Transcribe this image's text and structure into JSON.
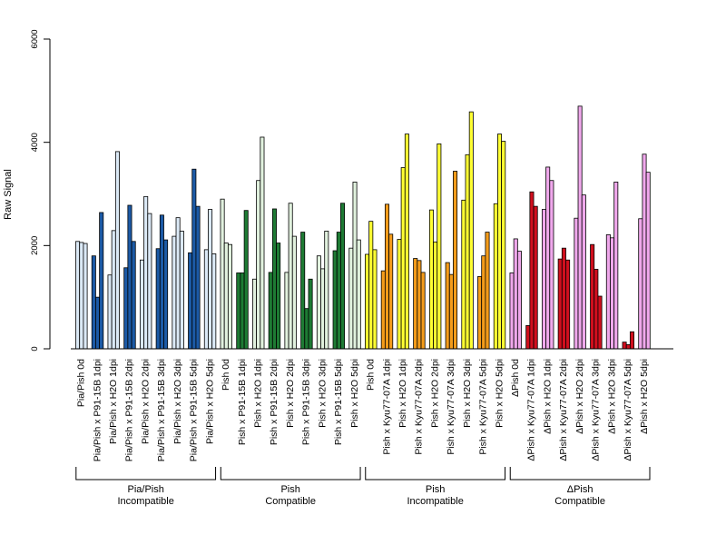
{
  "chart_data": {
    "type": "bar",
    "title": "",
    "xlabel": "",
    "ylabel": "Raw Signal",
    "ylim": [
      0,
      6000
    ],
    "yticks": [
      "0",
      "2000",
      "4000",
      "6000"
    ],
    "grid": false,
    "legend": "none",
    "replicates_per_bar_group": 3,
    "groups": [
      {
        "label": "Pia/Pish 0d",
        "values": [
          2080,
          2060,
          2040
        ],
        "color": "#dbe9f6"
      },
      {
        "label": "Pia/Pish x P91-15B 1dpi",
        "values": [
          1800,
          1000,
          2640
        ],
        "color": "#1c5aa6"
      },
      {
        "label": "Pia/Pish x H2O 1dpi",
        "values": [
          1430,
          2290,
          3820
        ],
        "color": "#dbe9f6"
      },
      {
        "label": "Pia/Pish x P91-15B 2dpi",
        "values": [
          1570,
          2780,
          2080
        ],
        "color": "#1c5aa6"
      },
      {
        "label": "Pia/Pish x H2O 2dpi",
        "values": [
          1720,
          2950,
          2620
        ],
        "color": "#dbe9f6"
      },
      {
        "label": "Pia/Pish x P91-15B 3dpi",
        "values": [
          1940,
          2590,
          2110
        ],
        "color": "#1c5aa6"
      },
      {
        "label": "Pia/Pish x H2O 3dpi",
        "values": [
          2180,
          2540,
          2280
        ],
        "color": "#dbe9f6"
      },
      {
        "label": "Pia/Pish x P91-15B 5dpi",
        "values": [
          1860,
          3480,
          2760
        ],
        "color": "#1c5aa6"
      },
      {
        "label": "Pia/Pish x H2O 5dpi",
        "values": [
          1920,
          2700,
          1840
        ],
        "color": "#dbe9f6"
      },
      {
        "label": "Pish 0d",
        "values": [
          2900,
          2050,
          2020
        ],
        "color": "#e1f1de"
      },
      {
        "label": "Pish x P91-15B 1dpi",
        "values": [
          1470,
          1470,
          2680
        ],
        "color": "#1e7b34"
      },
      {
        "label": "Pish x H2O 1dpi",
        "values": [
          1350,
          3260,
          4100
        ],
        "color": "#e1f1de"
      },
      {
        "label": "Pish x P91-15B 2dpi",
        "values": [
          1480,
          2710,
          2050
        ],
        "color": "#1e7b34"
      },
      {
        "label": "Pish x H2O 2dpi",
        "values": [
          1480,
          2820,
          2180
        ],
        "color": "#e1f1de"
      },
      {
        "label": "Pish x P91-15B 3dpi",
        "values": [
          2260,
          780,
          1350
        ],
        "color": "#1e7b34"
      },
      {
        "label": "Pish x H2O 3dpi",
        "values": [
          1800,
          1550,
          2280
        ],
        "color": "#e1f1de"
      },
      {
        "label": "Pish x P91-15B 5dpi",
        "values": [
          1900,
          2260,
          2820
        ],
        "color": "#1e7b34"
      },
      {
        "label": "Pish x H2O 5dpi",
        "values": [
          1950,
          3230,
          2110
        ],
        "color": "#e1f1de"
      },
      {
        "label": "Pish 0d",
        "values": [
          1830,
          2470,
          1920
        ],
        "color": "#ffff33"
      },
      {
        "label": "Pish x Kyu77-07A 1dpi",
        "values": [
          1510,
          2800,
          2220
        ],
        "color": "#f49c1a"
      },
      {
        "label": "Pish x H2O 1dpi",
        "values": [
          2120,
          3510,
          4160
        ],
        "color": "#ffff33"
      },
      {
        "label": "Pish x Kyu77-07A 2dpi",
        "values": [
          1750,
          1710,
          1480
        ],
        "color": "#f49c1a"
      },
      {
        "label": "Pish x H2O 2dpi",
        "values": [
          2690,
          2070,
          3970
        ],
        "color": "#ffff33"
      },
      {
        "label": "Pish x Kyu77-07A 3dpi",
        "values": [
          1670,
          1440,
          3440
        ],
        "color": "#f49c1a"
      },
      {
        "label": "Pish x H2O 3dpi",
        "values": [
          2880,
          3760,
          4590
        ],
        "color": "#ffff33"
      },
      {
        "label": "Pish x Kyu77-07A 5dpi",
        "values": [
          1400,
          1800,
          2260
        ],
        "color": "#f49c1a"
      },
      {
        "label": "Pish x H2O 5dpi",
        "values": [
          2810,
          4160,
          4020
        ],
        "color": "#ffff33"
      },
      {
        "label": "ΔPish 0d",
        "values": [
          1470,
          2130,
          1890
        ],
        "color": "#f0a8ec"
      },
      {
        "label": "ΔPish x Kyu77-07A 1dpi",
        "values": [
          450,
          3040,
          2760
        ],
        "color": "#d00f1e"
      },
      {
        "label": "ΔPish x H2O 1dpi",
        "values": [
          2700,
          3520,
          3260
        ],
        "color": "#f0a8ec"
      },
      {
        "label": "ΔPish x Kyu77-07A 2dpi",
        "values": [
          1740,
          1950,
          1720
        ],
        "color": "#d00f1e"
      },
      {
        "label": "ΔPish x H2O 2dpi",
        "values": [
          2530,
          4700,
          2980
        ],
        "color": "#f0a8ec"
      },
      {
        "label": "ΔPish x Kyu77-07A 3dpi",
        "values": [
          2020,
          1540,
          1020
        ],
        "color": "#d00f1e"
      },
      {
        "label": "ΔPish x H2O 3dpi",
        "values": [
          2210,
          2150,
          3230
        ],
        "color": "#f0a8ec"
      },
      {
        "label": "ΔPish x Kyu77-07A 5dpi",
        "values": [
          130,
          80,
          330
        ],
        "color": "#d00f1e"
      },
      {
        "label": "ΔPish x H2O 5dpi",
        "values": [
          2520,
          3770,
          3420
        ],
        "color": "#f0a8ec"
      }
    ],
    "brackets": [
      {
        "line1": "Pia/Pish",
        "line2": "Incompatible",
        "from_group": 0,
        "to_group": 8
      },
      {
        "line1": "Pish",
        "line2": "Compatible",
        "from_group": 9,
        "to_group": 17
      },
      {
        "line1": "Pish",
        "line2": "Incompatible",
        "from_group": 18,
        "to_group": 26
      },
      {
        "line1": "ΔPish",
        "line2": "Compatible",
        "from_group": 27,
        "to_group": 35
      }
    ]
  }
}
